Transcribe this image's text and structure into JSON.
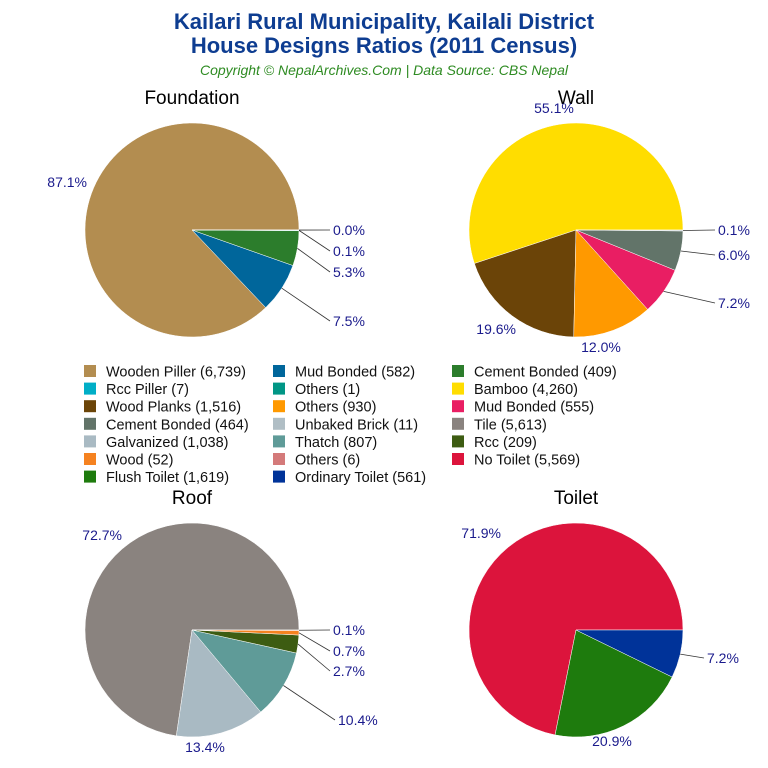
{
  "title_line1": "Kailari Rural Municipality, Kailali District",
  "title_line2": "House Designs Ratios (2011 Census)",
  "subtitle": "Copyright © NepalArchives.Com | Data Source: CBS Nepal",
  "chart_data": [
    {
      "type": "pie",
      "title": "Foundation",
      "slices": [
        {
          "label": "Wooden Piller",
          "value": 6739,
          "percent": "87.1%",
          "color": "#B38D50"
        },
        {
          "label": "Mud Bonded",
          "value": 582,
          "percent": "7.5%",
          "color": "#00669B"
        },
        {
          "label": "Cement Bonded",
          "value": 409,
          "percent": "5.3%",
          "color": "#2C7D2C"
        },
        {
          "label": "Rcc Piller",
          "value": 7,
          "percent": "0.1%",
          "color": "#00AEC7"
        },
        {
          "label": "Others",
          "value": 1,
          "percent": "0.0%",
          "color": "#009685"
        }
      ]
    },
    {
      "type": "pie",
      "title": "Wall",
      "slices": [
        {
          "label": "Bamboo",
          "value": 4260,
          "percent": "55.1%",
          "color": "#FFDD00"
        },
        {
          "label": "Wood Planks",
          "value": 1516,
          "percent": "19.6%",
          "color": "#6B4408"
        },
        {
          "label": "Others",
          "value": 930,
          "percent": "12.0%",
          "color": "#FF9900"
        },
        {
          "label": "Mud Bonded",
          "value": 555,
          "percent": "7.2%",
          "color": "#E91E63"
        },
        {
          "label": "Cement Bonded",
          "value": 464,
          "percent": "6.0%",
          "color": "#627469"
        },
        {
          "label": "Unbaked Brick",
          "value": 11,
          "percent": "0.1%",
          "color": "#B0BEC5"
        }
      ]
    },
    {
      "type": "pie",
      "title": "Roof",
      "slices": [
        {
          "label": "Tile",
          "value": 5613,
          "percent": "72.7%",
          "color": "#8A837F"
        },
        {
          "label": "Galvanized",
          "value": 1038,
          "percent": "13.4%",
          "color": "#A9BAC3"
        },
        {
          "label": "Thatch",
          "value": 807,
          "percent": "10.4%",
          "color": "#5F9B98"
        },
        {
          "label": "Rcc",
          "value": 209,
          "percent": "2.7%",
          "color": "#3D5C12"
        },
        {
          "label": "Wood",
          "value": 52,
          "percent": "0.7%",
          "color": "#F58220"
        },
        {
          "label": "Others",
          "value": 6,
          "percent": "0.1%",
          "color": "#D47A7A"
        }
      ]
    },
    {
      "type": "pie",
      "title": "Toilet",
      "slices": [
        {
          "label": "No Toilet",
          "value": 5569,
          "percent": "71.9%",
          "color": "#DC143C"
        },
        {
          "label": "Flush Toilet",
          "value": 1619,
          "percent": "20.9%",
          "color": "#1E7B0D"
        },
        {
          "label": "Ordinary Toilet",
          "value": 561,
          "percent": "7.2%",
          "color": "#003399"
        }
      ]
    }
  ],
  "legend": [
    [
      "Wooden Piller (6,739)",
      "#B38D50"
    ],
    [
      "Mud Bonded (582)",
      "#00669B"
    ],
    [
      "Cement Bonded (409)",
      "#2C7D2C"
    ],
    [
      "Rcc Piller (7)",
      "#00AEC7"
    ],
    [
      "Others (1)",
      "#009685"
    ],
    [
      "Bamboo (4,260)",
      "#FFDD00"
    ],
    [
      "Wood Planks (1,516)",
      "#6B4408"
    ],
    [
      "Others (930)",
      "#FF9900"
    ],
    [
      "Mud Bonded (555)",
      "#E91E63"
    ],
    [
      "Cement Bonded (464)",
      "#627469"
    ],
    [
      "Unbaked Brick (11)",
      "#B0BEC5"
    ],
    [
      "Tile (5,613)",
      "#8A837F"
    ],
    [
      "Galvanized (1,038)",
      "#A9BAC3"
    ],
    [
      "Thatch (807)",
      "#5F9B98"
    ],
    [
      "Rcc (209)",
      "#3D5C12"
    ],
    [
      "Wood (52)",
      "#F58220"
    ],
    [
      "Others (6)",
      "#D47A7A"
    ],
    [
      "No Toilet (5,569)",
      "#DC143C"
    ],
    [
      "Flush Toilet (1,619)",
      "#1E7B0D"
    ],
    [
      "Ordinary Toilet (561)",
      "#003399"
    ]
  ]
}
